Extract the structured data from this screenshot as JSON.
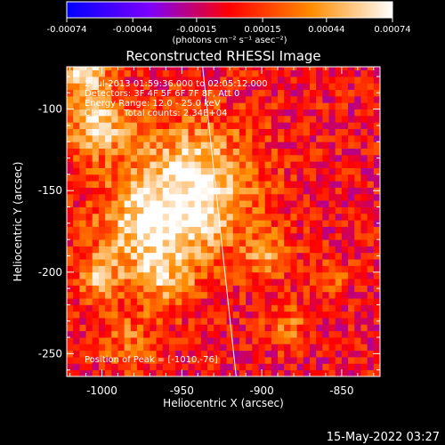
{
  "colorbar": {
    "ticks": [
      "-0.00074",
      "-0.00044",
      "-0.00015",
      "0.00015",
      "0.00044",
      "0.00074"
    ],
    "tick_values": [
      -0.00074,
      -0.00044,
      -0.00015,
      0.00015,
      0.00044,
      0.00074
    ],
    "units_label": "(photons cm⁻² s⁻¹ asec⁻²)",
    "colors": [
      "#0000ff",
      "#7a00ff",
      "#ff0000",
      "#ff8c00",
      "#ffffff"
    ]
  },
  "chart_data": {
    "type": "heatmap",
    "title": "Reconstructed RHESSI Image",
    "xlabel": "Heliocentric X (arcsec)",
    "ylabel": "Heliocentric Y (arcsec)",
    "xlim": [
      -1022,
      -826
    ],
    "ylim": [
      -264,
      -74
    ],
    "xticks": [
      -1000,
      -950,
      -900,
      -850
    ],
    "yticks": [
      -100,
      -150,
      -200,
      -250
    ],
    "xtick_labels": [
      "-1000",
      "-950",
      "-900",
      "-850"
    ],
    "ytick_labels": [
      "-100",
      "-150",
      "-200",
      "-250"
    ],
    "info_lines": [
      "2-Jul-2013 01:59:36.000 to 02:05:12.000",
      "Detectors: 3F 4F 5F 6F 7F 8F, Att 0",
      "Energy Range: 12.0 - 25.0 keV",
      "Clean     Total counts: 2.34E+04"
    ],
    "peak_label": "Position of Peak = [-1010,-76]",
    "peak_position": [
      -1010,
      -76
    ],
    "limb_line": [
      [
        -937,
        -74
      ],
      [
        -916,
        -264
      ]
    ],
    "sources": [
      {
        "x": -945,
        "y": -150,
        "amp": 0.0007,
        "sigma": 28
      },
      {
        "x": -1005,
        "y": -110,
        "amp": 0.0006,
        "sigma": 14
      },
      {
        "x": -975,
        "y": -180,
        "amp": 0.0005,
        "sigma": 22
      },
      {
        "x": -1012,
        "y": -76,
        "amp": 0.00074,
        "sigma": 10
      },
      {
        "x": -960,
        "y": -210,
        "amp": 0.0003,
        "sigma": 12
      },
      {
        "x": -898,
        "y": -190,
        "amp": 0.00035,
        "sigma": 10
      },
      {
        "x": -885,
        "y": -235,
        "amp": 0.0003,
        "sigma": 9
      },
      {
        "x": -1005,
        "y": -205,
        "amp": 0.0004,
        "sigma": 10
      },
      {
        "x": -860,
        "y": -205,
        "amp": 0.00025,
        "sigma": 8
      },
      {
        "x": -985,
        "y": -245,
        "amp": 0.0003,
        "sigma": 12
      }
    ]
  },
  "footer": {
    "timestamp": "15-May-2022 03:27"
  }
}
